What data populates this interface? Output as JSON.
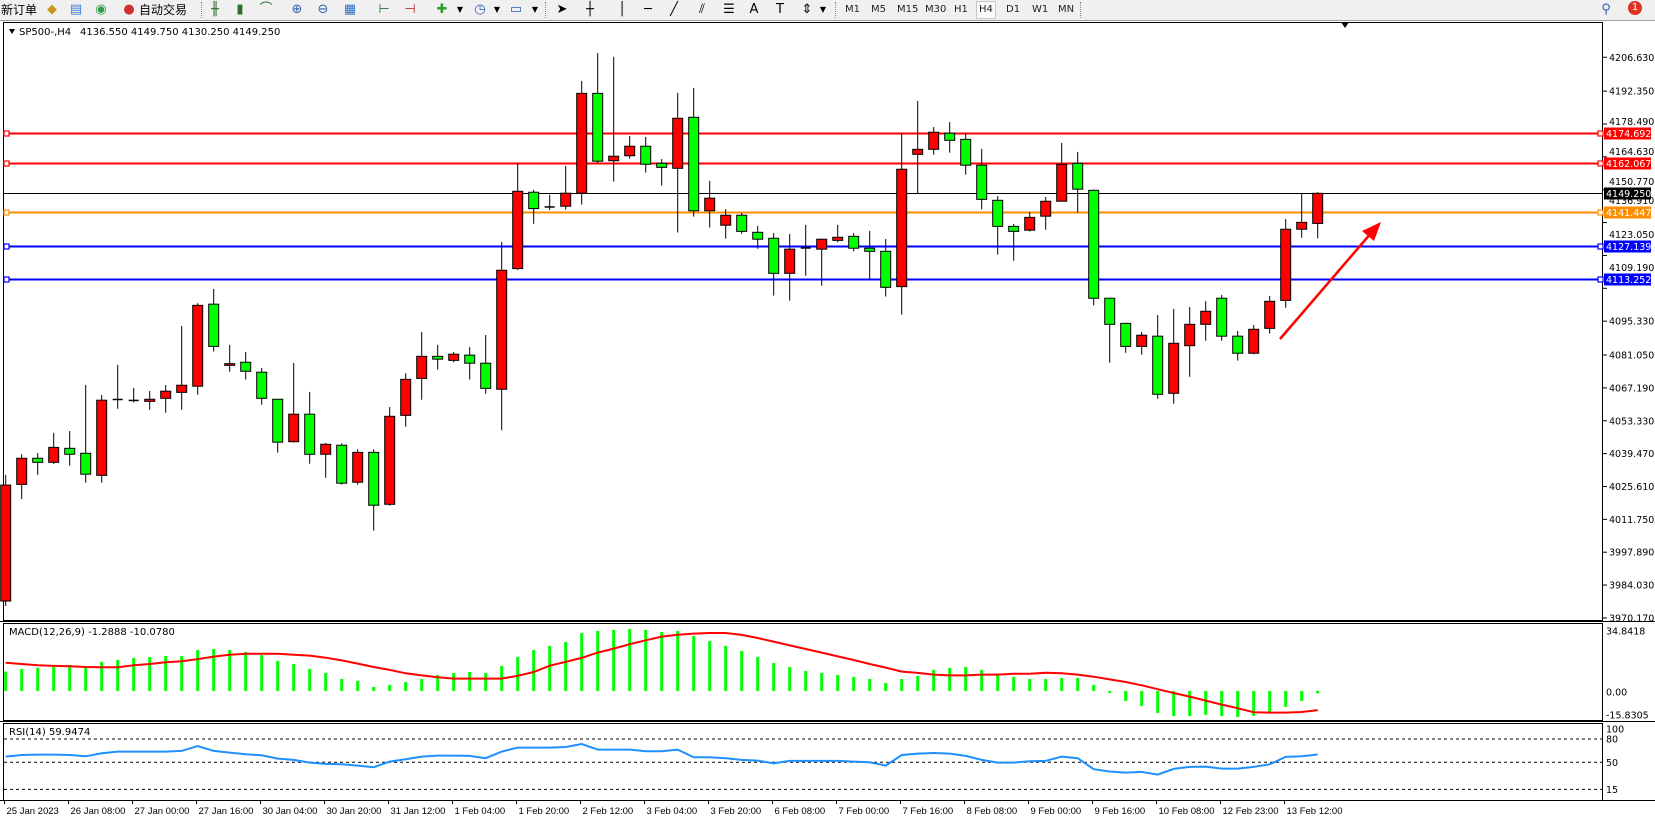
{
  "toolbar": {
    "new_order": "新订单",
    "auto_trading": "自动交易",
    "timeframes": [
      "M1",
      "M5",
      "M15",
      "M30",
      "H1",
      "H4",
      "D1",
      "W1",
      "MN"
    ],
    "active_timeframe": "H4",
    "notification_count": "1",
    "icons": [
      "profiles-icon",
      "market-watch-icon",
      "signals-icon",
      "auto-trading-icon",
      "bar-chart-icon",
      "candlestick-icon",
      "line-chart-icon",
      "zoom-in-icon",
      "zoom-out-icon",
      "tile-windows-icon",
      "auto-scroll-icon",
      "chart-shift-icon",
      "indicators-icon",
      "periods-icon",
      "templates-icon",
      "cursor-icon",
      "crosshair-icon",
      "vertical-line-icon",
      "horizontal-line-icon",
      "trendline-icon",
      "equidistant-channel-icon",
      "fibonacci-icon",
      "text-icon",
      "text-label-icon",
      "arrows-icon",
      "search-icon",
      "notification-icon"
    ]
  },
  "chart": {
    "symbol": "SP500-,H4",
    "ohlc_text": "4136.550 4149.750 4130.250 4149.250",
    "bull_color": "#ff0000",
    "bear_color": "#00ff00",
    "price_axis_labels": [
      "4206.630",
      "4192.350",
      "4178.490",
      "4164.630",
      "4150.770",
      "4136.910",
      "4123.050",
      "4109.190",
      "4095.330",
      "4081.050",
      "4067.190",
      "4053.330",
      "4039.470",
      "4025.610",
      "4011.750",
      "3997.890",
      "3984.030",
      "3970.170"
    ],
    "time_labels": [
      "25 Jan 2023",
      "26 Jan 08:00",
      "27 Jan 00:00",
      "27 Jan 16:00",
      "30 Jan 04:00",
      "30 Jan 20:00",
      "31 Jan 12:00",
      "1 Feb 04:00",
      "1 Feb 20:00",
      "2 Feb 12:00",
      "3 Feb 04:00",
      "3 Feb 20:00",
      "6 Feb 08:00",
      "7 Feb 00:00",
      "7 Feb 16:00",
      "8 Feb 08:00",
      "9 Feb 00:00",
      "9 Feb 16:00",
      "10 Feb 08:00",
      "12 Feb 23:00",
      "13 Feb 12:00"
    ],
    "hlines": [
      {
        "price": 4174.692,
        "label": "4174.692",
        "color": "#ff0000"
      },
      {
        "price": 4162.067,
        "label": "4162.067",
        "color": "#ff0000"
      },
      {
        "price": 4149.25,
        "label": "4149.250",
        "color": "#000000"
      },
      {
        "price": 4141.447,
        "label": "4141.447",
        "color": "#ff8c00"
      },
      {
        "price": 4127.139,
        "label": "4127.139",
        "color": "#0000ff"
      },
      {
        "price": 4113.252,
        "label": "4113.252",
        "color": "#0000ff"
      }
    ],
    "annotation_arrow_color": "#ff0000"
  },
  "macd": {
    "label": "MACD(12,26,9) -1.2888 -10.0780",
    "axis_labels": [
      "34.8418",
      "0.00",
      "-15.8305"
    ],
    "hist_color": "#00ff00",
    "signal_color": "#ff0000"
  },
  "rsi": {
    "label": "RSI(14) 59.9474",
    "axis_labels": [
      "100",
      "80",
      "50",
      "15"
    ],
    "levels": [
      80,
      50,
      15
    ],
    "line_color": "#1e90ff"
  },
  "chart_data": {
    "type": "candlestick",
    "symbol": "SP500-",
    "timeframe": "H4",
    "ylim": [
      3969.3,
      4221.5
    ],
    "ohlc": [
      [
        3977.3,
        4030.5,
        3975.2,
        4026.2
      ],
      [
        4026.5,
        4039.2,
        4020.3,
        4037.5
      ],
      [
        4037.5,
        4039.7,
        4030.5,
        4035.8
      ],
      [
        4035.8,
        4048.2,
        4035.1,
        4042.1
      ],
      [
        4041.7,
        4049.0,
        4034.4,
        4039.2
      ],
      [
        4039.6,
        4068.4,
        4027.2,
        4030.8
      ],
      [
        4030.3,
        4064.2,
        4027.2,
        4062.0
      ],
      [
        4062.3,
        4076.9,
        4058.4,
        4062.1
      ],
      [
        4061.8,
        4067.2,
        4061.0,
        4061.9
      ],
      [
        4061.5,
        4065.9,
        4058.0,
        4062.4
      ],
      [
        4062.8,
        4068.4,
        4056.7,
        4065.8
      ],
      [
        4065.3,
        4093.3,
        4058.0,
        4068.3
      ],
      [
        4067.9,
        4102.9,
        4064.3,
        4102.0
      ],
      [
        4102.5,
        4108.9,
        4082.5,
        4084.7
      ],
      [
        4076.7,
        4085.3,
        4074.0,
        4077.4
      ],
      [
        4078.0,
        4082.3,
        4070.7,
        4074.2
      ],
      [
        4073.8,
        4075.6,
        4060.1,
        4062.8
      ],
      [
        4062.4,
        4062.4,
        4039.9,
        4044.3
      ],
      [
        4044.5,
        4077.7,
        4044.1,
        4056.1
      ],
      [
        4056.1,
        4065.5,
        4035.2,
        4039.2
      ],
      [
        4039.2,
        4044.0,
        4029.3,
        4043.4
      ],
      [
        4043.0,
        4043.8,
        4026.4,
        4027.0
      ],
      [
        4027.4,
        4041.3,
        4026.4,
        4040.0
      ],
      [
        4040.0,
        4041.3,
        4007.0,
        4017.7
      ],
      [
        4018.1,
        4059.1,
        4017.5,
        4055.2
      ],
      [
        4055.6,
        4073.4,
        4050.8,
        4070.8
      ],
      [
        4071.2,
        4090.8,
        4062.2,
        4080.5
      ],
      [
        4080.5,
        4085.3,
        4074.9,
        4079.3
      ],
      [
        4078.8,
        4082.3,
        4078.0,
        4081.4
      ],
      [
        4081.0,
        4084.4,
        4070.7,
        4077.6
      ],
      [
        4077.6,
        4089.5,
        4064.7,
        4067.0
      ],
      [
        4066.6,
        4128.7,
        4049.4,
        4116.8
      ],
      [
        4117.5,
        4161.9,
        4116.9,
        4150.1
      ],
      [
        4149.7,
        4150.7,
        4136.4,
        4142.8
      ],
      [
        4143.5,
        4148.6,
        4142.2,
        4143.1
      ],
      [
        4143.8,
        4160.8,
        4142.4,
        4149.3
      ],
      [
        4149.3,
        4196.6,
        4144.5,
        4191.4
      ],
      [
        4191.4,
        4208.4,
        4161.9,
        4162.8
      ],
      [
        4163.0,
        4206.8,
        4154.2,
        4164.9
      ],
      [
        4165.1,
        4173.4,
        4163.9,
        4169.1
      ],
      [
        4169.1,
        4173.0,
        4158.0,
        4161.5
      ],
      [
        4161.9,
        4163.7,
        4152.5,
        4160.2
      ],
      [
        4159.8,
        4191.6,
        4132.7,
        4180.9
      ],
      [
        4181.3,
        4193.7,
        4139.4,
        4141.9
      ],
      [
        4141.9,
        4154.5,
        4134.8,
        4147.2
      ],
      [
        4135.8,
        4142.6,
        4130.1,
        4140.0
      ],
      [
        4140.0,
        4141.0,
        4132.2,
        4133.2
      ],
      [
        4132.8,
        4135.5,
        4125.9,
        4129.9
      ],
      [
        4130.3,
        4132.5,
        4106.1,
        4115.5
      ],
      [
        4115.5,
        4132.1,
        4104.0,
        4125.7
      ],
      [
        4126.2,
        4135.9,
        4114.5,
        4126.0
      ],
      [
        4125.7,
        4130.0,
        4110.3,
        4129.9
      ],
      [
        4129.4,
        4135.9,
        4128.6,
        4130.7
      ],
      [
        4131.1,
        4132.5,
        4124.8,
        4126.1
      ],
      [
        4126.1,
        4133.4,
        4112.8,
        4124.8
      ],
      [
        4124.8,
        4130.0,
        4105.7,
        4109.6
      ],
      [
        4109.9,
        4174.8,
        4098.1,
        4159.4
      ],
      [
        4165.7,
        4188.2,
        4149.3,
        4167.8
      ],
      [
        4167.8,
        4177.2,
        4165.5,
        4175.0
      ],
      [
        4174.6,
        4179.3,
        4166.4,
        4171.6
      ],
      [
        4172.0,
        4174.8,
        4157.1,
        4161.1
      ],
      [
        4161.1,
        4168.0,
        4142.5,
        4146.7
      ],
      [
        4146.3,
        4148.1,
        4123.4,
        4135.3
      ],
      [
        4135.3,
        4136.3,
        4120.8,
        4133.2
      ],
      [
        4133.7,
        4141.4,
        4133.2,
        4139.1
      ],
      [
        4139.6,
        4147.7,
        4133.9,
        4145.9
      ],
      [
        4145.9,
        4170.5,
        4145.9,
        4161.5
      ],
      [
        4161.9,
        4166.7,
        4141.1,
        4151.0
      ],
      [
        4150.5,
        4150.9,
        4102.0,
        4105.0
      ],
      [
        4105.0,
        4105.1,
        4077.8,
        4094.0
      ],
      [
        4094.4,
        4094.6,
        4082.0,
        4084.7
      ],
      [
        4084.7,
        4090.8,
        4081.2,
        4089.4
      ],
      [
        4089.0,
        4097.9,
        4062.6,
        4064.5
      ],
      [
        4064.9,
        4100.5,
        4060.5,
        4086.0
      ],
      [
        4085.0,
        4101.3,
        4071.9,
        4094.0
      ],
      [
        4094.0,
        4103.8,
        4087.1,
        4099.5
      ],
      [
        4105.0,
        4106.4,
        4087.1,
        4089.0
      ],
      [
        4089.0,
        4091.2,
        4078.7,
        4081.8
      ],
      [
        4081.8,
        4093.7,
        4081.4,
        4091.9
      ],
      [
        4092.3,
        4106.0,
        4090.1,
        4103.7
      ],
      [
        4104.1,
        4138.4,
        4101.0,
        4134.1
      ],
      [
        4134.1,
        4149.3,
        4130.5,
        4137.0
      ],
      [
        4136.55,
        4149.75,
        4130.25,
        4149.25
      ]
    ],
    "macd": {
      "ylim": [
        -15.8305,
        34.8418
      ],
      "histogram": [
        10.2,
        11.6,
        12.1,
        12.6,
        13.7,
        12.8,
        15.3,
        16.3,
        17.4,
        17.9,
        18.4,
        18.4,
        21.6,
        22.1,
        21.6,
        20.5,
        18.9,
        15.8,
        14.2,
        11.6,
        9.5,
        6.3,
        5.3,
        2.1,
        3.2,
        4.7,
        6.3,
        8.4,
        9.5,
        10.0,
        9.5,
        13.2,
        17.9,
        21.6,
        23.7,
        25.8,
        30.5,
        31.6,
        32.1,
        32.6,
        32.1,
        31.1,
        31.6,
        28.9,
        26.3,
        23.7,
        21.1,
        17.9,
        14.7,
        12.6,
        10.5,
        9.5,
        8.4,
        7.4,
        6.3,
        4.2,
        6.3,
        7.9,
        11.1,
        12.1,
        12.6,
        11.1,
        8.4,
        7.4,
        6.3,
        6.3,
        6.8,
        6.8,
        3.2,
        -1.0,
        -5.3,
        -7.9,
        -11.6,
        -13.2,
        -13.2,
        -12.6,
        -13.2,
        -13.7,
        -13.2,
        -11.1,
        -8.4,
        -5.3,
        -1.2888
      ],
      "signal": [
        14.9,
        14.2,
        13.5,
        13.2,
        13.0,
        12.6,
        12.5,
        12.5,
        13.5,
        14.2,
        15.1,
        15.6,
        16.8,
        18.1,
        19.1,
        19.6,
        19.6,
        19.6,
        19.1,
        18.6,
        17.5,
        16.1,
        14.4,
        12.6,
        11.1,
        9.3,
        8.2,
        7.2,
        6.5,
        6.5,
        6.5,
        6.5,
        8.0,
        10.0,
        13.3,
        15.3,
        17.4,
        20.2,
        22.3,
        24.6,
        26.7,
        28.6,
        29.6,
        30.2,
        30.5,
        30.5,
        29.5,
        27.9,
        26.0,
        24.0,
        22.1,
        20.2,
        18.2,
        16.3,
        14.2,
        12.3,
        10.2,
        9.5,
        8.6,
        8.2,
        8.2,
        8.6,
        8.6,
        9.1,
        9.1,
        9.6,
        9.3,
        8.6,
        7.5,
        6.1,
        4.7,
        3.0,
        0.9,
        -1.1,
        -3.0,
        -5.1,
        -7.2,
        -9.1,
        -11.2,
        -11.4,
        -11.4,
        -11.1,
        -10.078
      ]
    },
    "rsi": {
      "ylim": [
        0,
        100
      ],
      "values": [
        57.3,
        59.4,
        59.9,
        59.9,
        59.4,
        57.7,
        61.6,
        63.7,
        63.7,
        63.7,
        63.7,
        64.6,
        71.0,
        64.6,
        62.4,
        60.3,
        59.0,
        54.7,
        53.0,
        49.6,
        47.9,
        47.4,
        45.7,
        43.6,
        50.9,
        53.9,
        57.3,
        58.6,
        58.6,
        58.2,
        55.2,
        63.7,
        68.9,
        68.9,
        68.9,
        69.7,
        73.6,
        66.3,
        66.3,
        66.3,
        64.2,
        64.2,
        66.3,
        56.4,
        56.4,
        55.2,
        53.0,
        52.1,
        48.7,
        51.7,
        51.7,
        51.7,
        51.7,
        50.9,
        50.0,
        45.7,
        59.4,
        61.2,
        62.0,
        61.2,
        58.2,
        53.0,
        49.6,
        49.6,
        51.3,
        51.7,
        57.3,
        55.2,
        41.0,
        38.0,
        36.7,
        37.6,
        34.1,
        41.4,
        44.0,
        44.4,
        41.8,
        41.8,
        44.0,
        47.4,
        56.9,
        57.7,
        59.9474
      ]
    }
  }
}
